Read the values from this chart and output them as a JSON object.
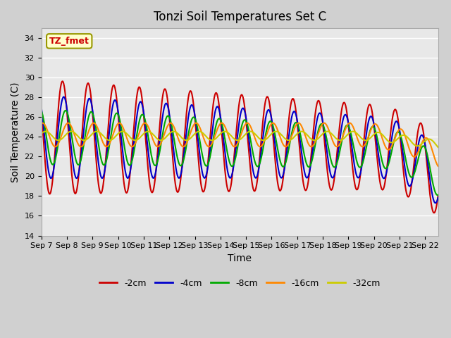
{
  "title": "Tonzi Soil Temperatures Set C",
  "xlabel": "Time",
  "ylabel": "Soil Temperature (C)",
  "ylim": [
    14,
    35
  ],
  "yticks": [
    14,
    16,
    18,
    20,
    22,
    24,
    26,
    28,
    30,
    32,
    34
  ],
  "legend_label": "TZ_fmet",
  "series_labels": [
    "-2cm",
    "-4cm",
    "-8cm",
    "-16cm",
    "-32cm"
  ],
  "series_colors": [
    "#cc0000",
    "#0000cc",
    "#00aa00",
    "#ff8800",
    "#cccc00"
  ],
  "line_widths": [
    1.5,
    1.5,
    1.5,
    1.5,
    1.5
  ],
  "n_days": 15,
  "start_day": 7,
  "n_points": 744
}
